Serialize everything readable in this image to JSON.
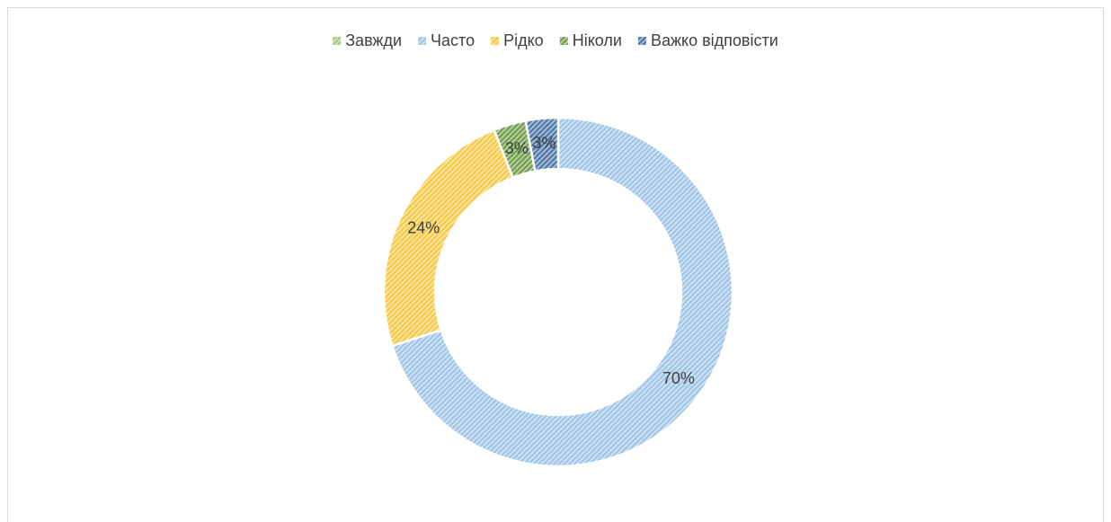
{
  "chart_data": {
    "type": "donut",
    "categories": [
      "Завжди",
      "Часто",
      "Рідко",
      "Ніколи",
      "Важко відповісти"
    ],
    "values": [
      0,
      70,
      24,
      3,
      3
    ],
    "value_labels": [
      null,
      "70%",
      "24%",
      "3%",
      "3%"
    ],
    "colors": [
      "#9cc97c",
      "#9dc3e6",
      "#f7c843",
      "#6f9e4a",
      "#4d76a8"
    ],
    "legend": "top"
  }
}
